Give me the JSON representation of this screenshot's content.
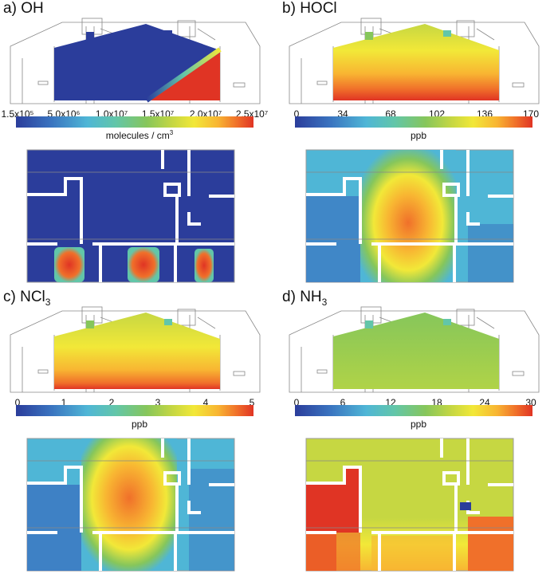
{
  "panels": [
    {
      "label": "a) OH",
      "species_main": "OH",
      "species_sub": "",
      "unit": "molecules / cm",
      "unit_sup": "3",
      "ticks": [
        "1.5x10⁵",
        "5.0x10⁶",
        "1.0x10⁷",
        "1.5x10⁷",
        "2.0x10⁷",
        "2.5x10⁷"
      ]
    },
    {
      "label": "b) HOCl",
      "species_main": "HOCl",
      "species_sub": "",
      "unit": "ppb",
      "unit_sup": "",
      "ticks": [
        "0",
        "34",
        "68",
        "102",
        "136",
        "170"
      ]
    },
    {
      "label": "c) NCl3",
      "species_main": "NCl",
      "species_sub": "3",
      "unit": "ppb",
      "unit_sup": "",
      "ticks": [
        "0",
        "1",
        "2",
        "3",
        "4",
        "5"
      ]
    },
    {
      "label": "d) NH3",
      "species_main": "NH",
      "species_sub": "3",
      "unit": "ppb",
      "unit_sup": "",
      "ticks": [
        "0",
        "6",
        "12",
        "18",
        "24",
        "30"
      ]
    }
  ],
  "colors": {
    "scale": [
      "#2b3d9b",
      "#3a74c0",
      "#4fb6d6",
      "#62c6a9",
      "#86c65b",
      "#c6d742",
      "#f2e838",
      "#f8b532",
      "#f0702a",
      "#e03424"
    ]
  }
}
